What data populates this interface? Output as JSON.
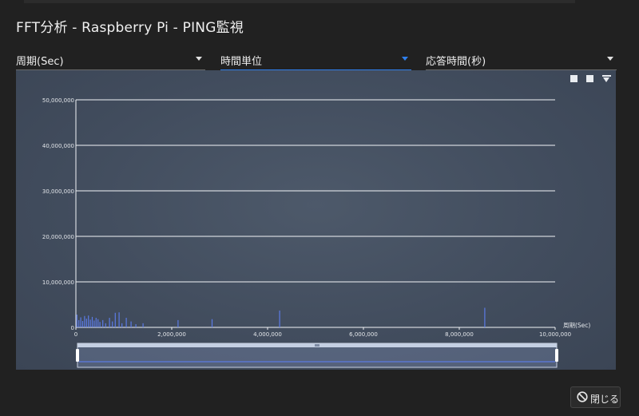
{
  "dialog": {
    "title": "FFT分析 - Raspberry Pi - PING監視",
    "close_label": "閉じる"
  },
  "selects": [
    {
      "label": "周期(Sec)",
      "active": false
    },
    {
      "label": "時間単位",
      "active": true
    },
    {
      "label": "応答時間(秒)",
      "active": false
    }
  ],
  "toolbox": {
    "icons": [
      "zoom-icon",
      "zoom-reset-icon",
      "download-icon"
    ]
  },
  "colors": {
    "accent": "#2f80ed",
    "series": "#5b7be6",
    "panel_bg": "#414c5d"
  },
  "chart_data": {
    "type": "bar",
    "xlabel": "周期(Sec)",
    "ylabel": "",
    "xlim": [
      0,
      10000000
    ],
    "ylim": [
      0,
      50000000
    ],
    "x_ticks": [
      "0",
      "2,000,000",
      "4,000,000",
      "6,000,000",
      "8,000,000",
      "10,000,000"
    ],
    "y_ticks": [
      "0",
      "10,000,000",
      "20,000,000",
      "30,000,000",
      "40,000,000",
      "50,000,000"
    ],
    "grid": true,
    "series": [
      {
        "values": [
          [
            20000,
            2800000
          ],
          [
            60000,
            1600000
          ],
          [
            100000,
            2200000
          ],
          [
            140000,
            1400000
          ],
          [
            180000,
            2500000
          ],
          [
            220000,
            1900000
          ],
          [
            260000,
            2600000
          ],
          [
            300000,
            1700000
          ],
          [
            340000,
            2300000
          ],
          [
            380000,
            1500000
          ],
          [
            420000,
            2100000
          ],
          [
            460000,
            1800000
          ],
          [
            500000,
            1200000
          ],
          [
            560000,
            1600000
          ],
          [
            620000,
            900000
          ],
          [
            700000,
            2100000
          ],
          [
            760000,
            1300000
          ],
          [
            820000,
            3200000
          ],
          [
            900000,
            3300000
          ],
          [
            960000,
            900000
          ],
          [
            1050000,
            2100000
          ],
          [
            1150000,
            1300000
          ],
          [
            1250000,
            700000
          ],
          [
            1400000,
            900000
          ],
          [
            2130000,
            1600000
          ],
          [
            2840000,
            1800000
          ],
          [
            4250000,
            3700000
          ],
          [
            8530000,
            4300000
          ]
        ]
      }
    ]
  }
}
